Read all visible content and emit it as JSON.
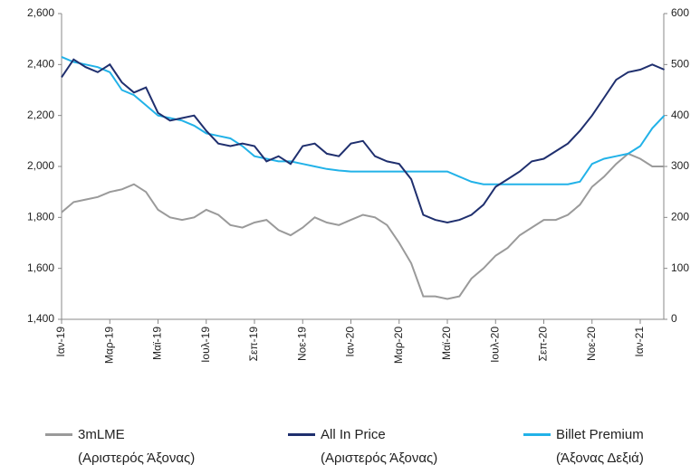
{
  "chart_data": {
    "type": "line",
    "categories": [
      "Ιαν-19",
      null,
      null,
      null,
      "Μαρ-19",
      null,
      null,
      null,
      "Μαϊ-19",
      null,
      null,
      null,
      "Ιουλ-19",
      null,
      null,
      null,
      "Σεπ-19",
      null,
      null,
      null,
      "Νοε-19",
      null,
      null,
      null,
      "Ιαν-20",
      null,
      null,
      null,
      "Μαρ-20",
      null,
      null,
      null,
      "Μαϊ-20",
      null,
      null,
      null,
      "Ιουλ-20",
      null,
      null,
      null,
      "Σεπ-20",
      null,
      null,
      null,
      "Νοε-20",
      null,
      null,
      null,
      "Ιαν-21",
      null,
      null
    ],
    "series": [
      {
        "name": "3mLME\n(Αριστερός Άξονας)",
        "color": "#9a9a9a",
        "axis": "y",
        "values": [
          1820,
          1860,
          1870,
          1880,
          1900,
          1910,
          1930,
          1900,
          1830,
          1800,
          1790,
          1800,
          1830,
          1810,
          1770,
          1760,
          1780,
          1790,
          1750,
          1730,
          1760,
          1800,
          1780,
          1770,
          1790,
          1810,
          1800,
          1770,
          1700,
          1620,
          1490,
          1490,
          1480,
          1490,
          1560,
          1600,
          1650,
          1680,
          1730,
          1760,
          1790,
          1790,
          1810,
          1850,
          1920,
          1960,
          2010,
          2050,
          2030,
          2000,
          2000
        ]
      },
      {
        "name": "All In Price\n(Αριστερός Άξονας)",
        "color": "#1f2f6e",
        "axis": "y",
        "values": [
          2350,
          2420,
          2390,
          2370,
          2400,
          2330,
          2290,
          2310,
          2210,
          2180,
          2190,
          2200,
          2140,
          2090,
          2080,
          2090,
          2080,
          2020,
          2040,
          2010,
          2080,
          2090,
          2050,
          2040,
          2090,
          2100,
          2040,
          2020,
          2010,
          1950,
          1810,
          1790,
          1780,
          1790,
          1810,
          1850,
          1920,
          1950,
          1980,
          2020,
          2030,
          2060,
          2090,
          2140,
          2200,
          2270,
          2340,
          2370,
          2380,
          2400,
          2380
        ]
      },
      {
        "name": "Billet Premium\n(Άξονας Δεξιά)",
        "color": "#22b2e8",
        "axis": "y2",
        "values": [
          515,
          505,
          500,
          495,
          485,
          450,
          440,
          420,
          400,
          395,
          390,
          380,
          365,
          360,
          355,
          340,
          320,
          315,
          310,
          310,
          305,
          300,
          295,
          292,
          290,
          290,
          290,
          290,
          290,
          290,
          290,
          290,
          290,
          280,
          270,
          265,
          265,
          265,
          265,
          265,
          265,
          265,
          265,
          270,
          305,
          315,
          320,
          325,
          340,
          375,
          400
        ]
      }
    ],
    "ylim": [
      1400,
      2600
    ],
    "yticks": [
      {
        "value": 1400,
        "label": "1,400"
      },
      {
        "value": 1600,
        "label": "1,600"
      },
      {
        "value": 1800,
        "label": "1,800"
      },
      {
        "value": 2000,
        "label": "2,000"
      },
      {
        "value": 2200,
        "label": "2,200"
      },
      {
        "value": 2400,
        "label": "2,400"
      },
      {
        "value": 2600,
        "label": "2,600"
      }
    ],
    "y2lim": [
      0,
      600
    ],
    "y2ticks": [
      0,
      100,
      200,
      300,
      400,
      500,
      600
    ],
    "legend": "bottom"
  }
}
